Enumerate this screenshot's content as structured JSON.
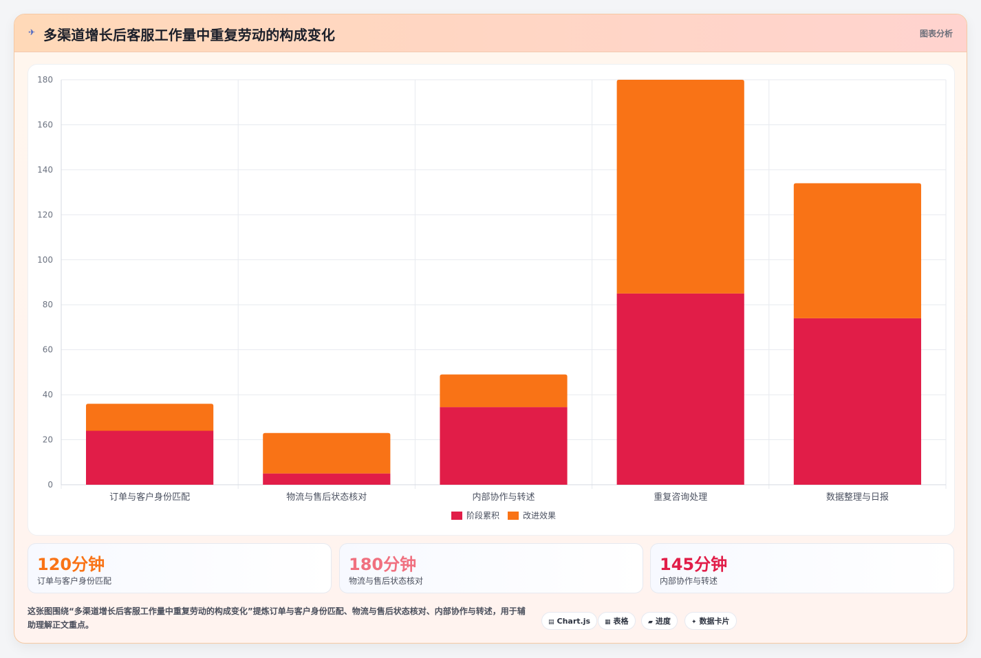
{
  "header": {
    "title": "多渠道增长后客服工作量中重复劳动的构成变化",
    "badge": "图表分析",
    "logo_icon": "plane-icon"
  },
  "chart_data": {
    "type": "bar",
    "stacked": true,
    "categories": [
      "订单与客户身份匹配",
      "物流与售后状态核对",
      "内部协作与转述",
      "重复咨询处理",
      "数据整理与日报"
    ],
    "series": [
      {
        "name": "阶段累积",
        "color": "#e11d48",
        "values": [
          24,
          5,
          34.5,
          85,
          74
        ]
      },
      {
        "name": "改进效果",
        "color": "#f97316",
        "values": [
          12,
          18,
          14.5,
          95,
          60
        ]
      }
    ],
    "ylim": [
      0,
      180
    ],
    "yticks": [
      0,
      20,
      40,
      60,
      80,
      100,
      120,
      140,
      160,
      180
    ],
    "grid": true,
    "legend": "bottom"
  },
  "kpis": [
    {
      "value": "120分钟",
      "label": "订单与客户身份匹配",
      "color": "#f97316"
    },
    {
      "value": "180分钟",
      "label": "物流与售后状态核对",
      "color": "#f0707f"
    },
    {
      "value": "145分钟",
      "label": "内部协作与转述",
      "color": "#e11d48"
    }
  ],
  "footer": {
    "description": "这张图围绕“多渠道增长后客服工作量中重复劳动的构成变化”提炼订单与客户身份匹配、物流与售后状态核对、内部协作与转述，用于辅助理解正文重点。"
  },
  "chips": [
    {
      "icon": "chart-icon",
      "glyph": "▤",
      "label": "Chart.js"
    },
    {
      "icon": "table-icon",
      "glyph": "▦",
      "label": "表格"
    },
    {
      "icon": "progress-icon",
      "glyph": "▰",
      "label": "进度"
    },
    {
      "icon": "sparkle-icon",
      "glyph": "✦",
      "label": "数据卡片"
    }
  ]
}
